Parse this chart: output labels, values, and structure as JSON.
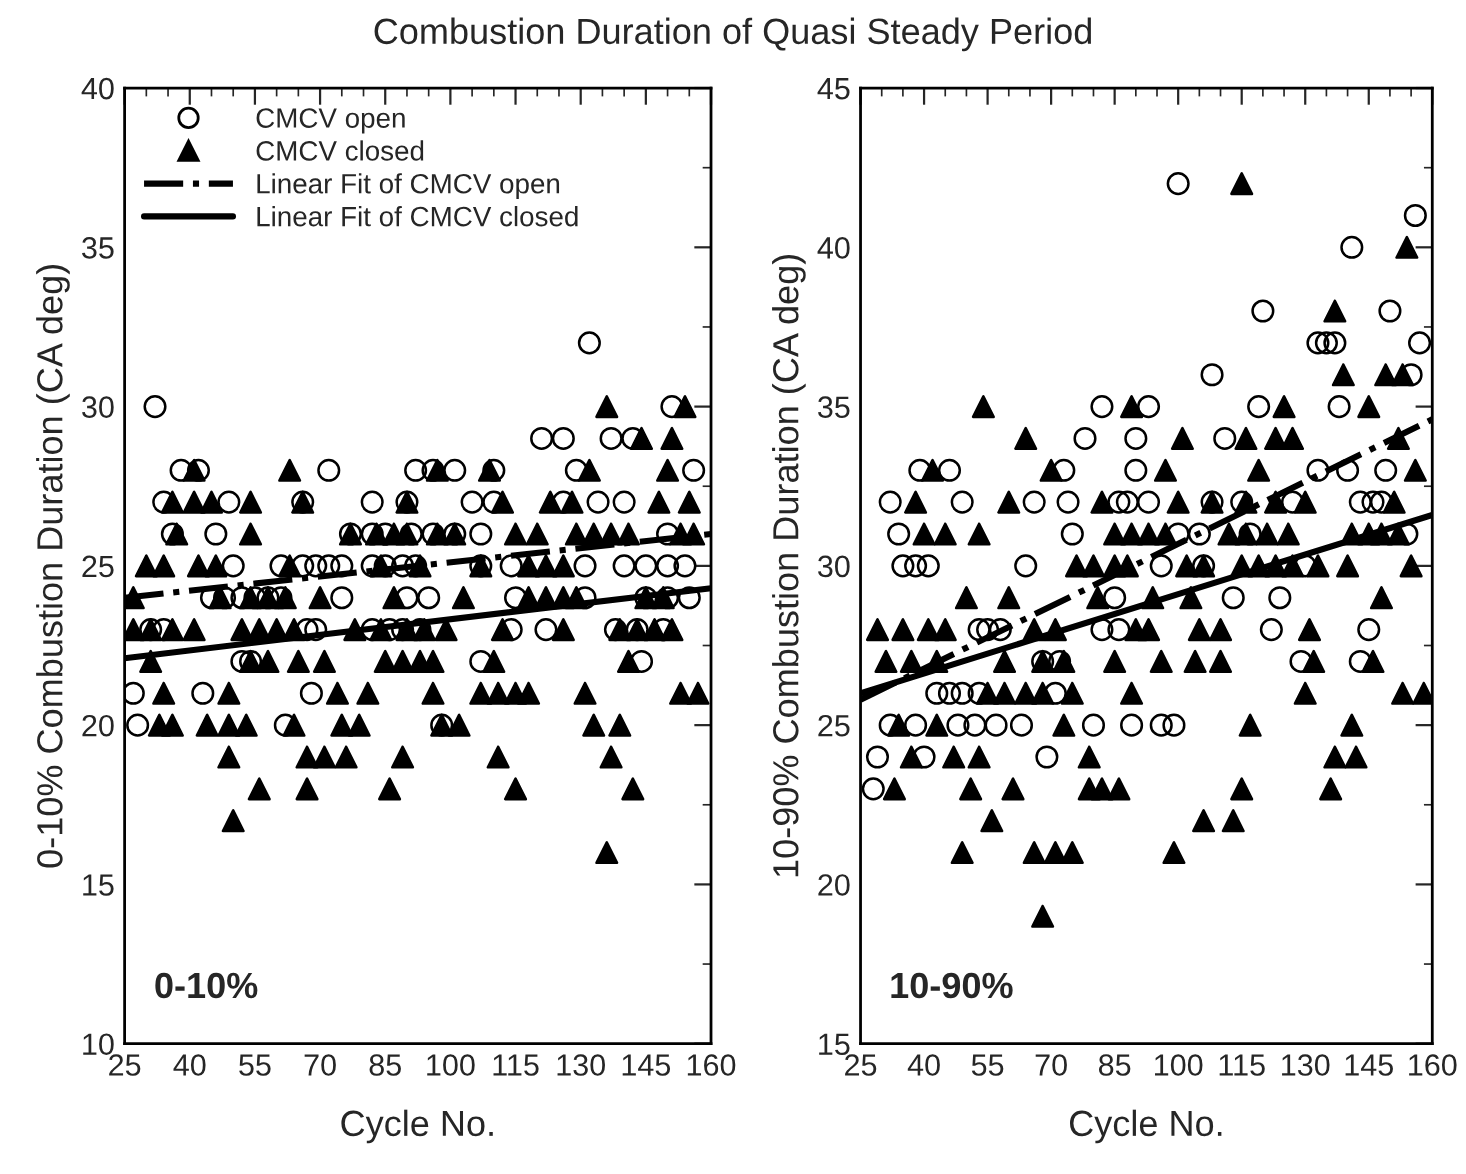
{
  "chart_data": [
    {
      "type": "scatter",
      "title": "Combustion Duration of Quasi Steady Period",
      "xlabel": "Cycle No.",
      "ylabel": "0-10% Combustion Duration (CA deg)",
      "xlim": [
        25,
        160
      ],
      "xticks": [
        25,
        40,
        55,
        70,
        85,
        100,
        115,
        130,
        145,
        160
      ],
      "ylim": [
        10,
        40
      ],
      "yticks": [
        10,
        15,
        20,
        25,
        30,
        35,
        40
      ],
      "grid": false,
      "legend": "top left",
      "annotations": [
        "0-10%"
      ],
      "series": [
        {
          "name": "CMCV open",
          "marker": "circle",
          "color": "#000000",
          "x": [
            132,
            32,
            151,
            121,
            126,
            137,
            142,
            38,
            42,
            72,
            92,
            96,
            101,
            110,
            129,
            156,
            34,
            49,
            66,
            82,
            90,
            105,
            110,
            126,
            134,
            140,
            36,
            46,
            77,
            82,
            85,
            91,
            96,
            101,
            107,
            150,
            50,
            61,
            66,
            69,
            72,
            75,
            82,
            85,
            89,
            92,
            107,
            114,
            131,
            140,
            145,
            150,
            154,
            45,
            48,
            52,
            55,
            58,
            61,
            75,
            90,
            95,
            115,
            131,
            145,
            150,
            155,
            31,
            34,
            67,
            69,
            82,
            86,
            89,
            93,
            114,
            122,
            138,
            143,
            149,
            52,
            54,
            107,
            144,
            27,
            43,
            68,
            28,
            62,
            98
          ],
          "values": [
            32,
            30,
            30,
            29,
            29,
            29,
            29,
            28,
            28,
            28,
            28,
            28,
            28,
            28,
            28,
            28,
            27,
            27,
            27,
            27,
            27,
            27,
            27,
            27,
            27,
            27,
            26,
            26,
            26,
            26,
            26,
            26,
            26,
            26,
            26,
            26,
            25,
            25,
            25,
            25,
            25,
            25,
            25,
            25,
            25,
            25,
            25,
            25,
            25,
            25,
            25,
            25,
            25,
            24,
            24,
            24,
            24,
            24,
            24,
            24,
            24,
            24,
            24,
            24,
            24,
            24,
            24,
            23,
            23,
            23,
            23,
            23,
            23,
            23,
            23,
            23,
            23,
            23,
            23,
            23,
            22,
            22,
            22,
            22,
            21,
            21,
            21,
            20,
            20,
            20
          ]
        },
        {
          "name": "CMCV closed",
          "marker": "triangle",
          "color": "#000000",
          "x": [
            136,
            154,
            144,
            151,
            41,
            63,
            97,
            109,
            132,
            150,
            36,
            41,
            45,
            54,
            66,
            90,
            112,
            123,
            128,
            148,
            155,
            37,
            54,
            77,
            83,
            87,
            90,
            97,
            101,
            115,
            120,
            129,
            133,
            137,
            141,
            153,
            156,
            30,
            34,
            42,
            46,
            63,
            84,
            93,
            107,
            118,
            122,
            126,
            27,
            47,
            54,
            58,
            62,
            70,
            87,
            103,
            118,
            122,
            126,
            129,
            145,
            149,
            27,
            31,
            36,
            41,
            52,
            56,
            60,
            64,
            78,
            84,
            90,
            94,
            99,
            112,
            126,
            139,
            143,
            147,
            151,
            31,
            54,
            58,
            65,
            71,
            85,
            89,
            93,
            96,
            110,
            141,
            34,
            49,
            74,
            81,
            96,
            107,
            111,
            115,
            118,
            131,
            153,
            157,
            33,
            36,
            44,
            49,
            53,
            64,
            75,
            79,
            98,
            102,
            133,
            139,
            49,
            67,
            71,
            76,
            89,
            111,
            137,
            56,
            67,
            86,
            115,
            142,
            50,
            136
          ],
          "values": [
            30,
            30,
            29,
            29,
            28,
            28,
            28,
            28,
            28,
            28,
            27,
            27,
            27,
            27,
            27,
            27,
            27,
            27,
            27,
            27,
            27,
            26,
            26,
            26,
            26,
            26,
            26,
            26,
            26,
            26,
            26,
            26,
            26,
            26,
            26,
            26,
            26,
            25,
            25,
            25,
            25,
            25,
            25,
            25,
            25,
            25,
            25,
            25,
            24,
            24,
            24,
            24,
            24,
            24,
            24,
            24,
            24,
            24,
            24,
            24,
            24,
            24,
            23,
            23,
            23,
            23,
            23,
            23,
            23,
            23,
            23,
            23,
            23,
            23,
            23,
            23,
            23,
            23,
            23,
            23,
            23,
            22,
            22,
            22,
            22,
            22,
            22,
            22,
            22,
            22,
            22,
            22,
            21,
            21,
            21,
            21,
            21,
            21,
            21,
            21,
            21,
            21,
            21,
            21,
            20,
            20,
            20,
            20,
            20,
            20,
            20,
            20,
            20,
            20,
            20,
            20,
            19,
            19,
            19,
            19,
            19,
            19,
            19,
            18,
            18,
            18,
            18,
            18,
            17,
            16
          ]
        },
        {
          "name": "Linear Fit of CMCV open",
          "type": "line",
          "line_style": "dashed",
          "marker": "none",
          "color": "#000000",
          "x": [
            25,
            160
          ],
          "values": [
            24.0,
            26.0
          ]
        },
        {
          "name": "Linear Fit of CMCV closed",
          "type": "line",
          "line_style": "solid",
          "marker": "none",
          "color": "#000000",
          "x": [
            25,
            160
          ],
          "values": [
            22.1,
            24.3
          ]
        }
      ]
    },
    {
      "type": "scatter",
      "xlabel": "Cycle No.",
      "ylabel": "10-90% Combustion Duration (CA deg)",
      "xlim": [
        25,
        160
      ],
      "xticks": [
        25,
        40,
        55,
        70,
        85,
        100,
        115,
        130,
        145,
        160
      ],
      "ylim": [
        15,
        45
      ],
      "yticks": [
        15,
        20,
        25,
        30,
        35,
        40,
        45
      ],
      "grid": false,
      "annotations": [
        "10-90%"
      ],
      "series": [
        {
          "marker": "circle",
          "color": "#000000",
          "x": [
            100,
            156,
            141,
            120,
            150,
            133,
            135,
            137,
            157,
            108,
            155,
            82,
            93,
            119,
            138,
            78,
            90,
            111,
            39,
            46,
            73,
            90,
            133,
            140,
            149,
            32,
            49,
            66,
            74,
            86,
            88,
            93,
            108,
            115,
            127,
            143,
            146,
            148,
            34,
            75,
            100,
            105,
            117,
            154,
            35,
            38,
            41,
            64,
            96,
            106,
            130,
            85,
            113,
            124,
            53,
            55,
            58,
            82,
            86,
            122,
            145,
            68,
            72,
            129,
            143,
            43,
            46,
            49,
            53,
            71,
            32,
            38,
            48,
            52,
            57,
            63,
            80,
            89,
            96,
            99,
            29,
            40,
            69,
            28
          ],
          "values": [
            42,
            41,
            40,
            38,
            38,
            37,
            37,
            37,
            37,
            36,
            36,
            35,
            35,
            35,
            35,
            34,
            34,
            34,
            33,
            33,
            33,
            33,
            33,
            33,
            33,
            32,
            32,
            32,
            32,
            32,
            32,
            32,
            32,
            32,
            32,
            32,
            32,
            32,
            31,
            31,
            31,
            31,
            31,
            31,
            30,
            30,
            30,
            30,
            30,
            30,
            30,
            29,
            29,
            29,
            28,
            28,
            28,
            28,
            28,
            28,
            28,
            27,
            27,
            27,
            27,
            26,
            26,
            26,
            26,
            26,
            25,
            25,
            25,
            25,
            25,
            25,
            25,
            25,
            25,
            25,
            24,
            24,
            24,
            23
          ]
        },
        {
          "marker": "triangle",
          "color": "#000000",
          "x": [
            115,
            154,
            137,
            139,
            149,
            153,
            54,
            89,
            125,
            145,
            64,
            101,
            116,
            123,
            127,
            152,
            42,
            70,
            97,
            119,
            156,
            38,
            60,
            82,
            100,
            108,
            116,
            123,
            130,
            151,
            40,
            45,
            53,
            85,
            89,
            93,
            97,
            112,
            116,
            121,
            126,
            141,
            145,
            148,
            152,
            76,
            80,
            85,
            88,
            102,
            106,
            115,
            119,
            123,
            127,
            133,
            140,
            155,
            50,
            60,
            81,
            94,
            103,
            148,
            29,
            35,
            41,
            45,
            66,
            71,
            90,
            93,
            105,
            110,
            131,
            31,
            37,
            43,
            59,
            68,
            73,
            85,
            96,
            104,
            110,
            132,
            146,
            55,
            59,
            64,
            68,
            75,
            89,
            130,
            153,
            158,
            34,
            43,
            73,
            117,
            141,
            37,
            47,
            53,
            79,
            137,
            142,
            33,
            51,
            61,
            79,
            82,
            86,
            115,
            136,
            56,
            106,
            113,
            49,
            66,
            71,
            75,
            99,
            68
          ],
          "values": [
            42,
            40,
            38,
            36,
            36,
            36,
            35,
            35,
            35,
            35,
            34,
            34,
            34,
            34,
            34,
            34,
            33,
            33,
            33,
            33,
            33,
            32,
            32,
            32,
            32,
            32,
            32,
            32,
            32,
            32,
            31,
            31,
            31,
            31,
            31,
            31,
            31,
            31,
            31,
            31,
            31,
            31,
            31,
            31,
            31,
            30,
            30,
            30,
            30,
            30,
            30,
            30,
            30,
            30,
            30,
            30,
            30,
            30,
            29,
            29,
            29,
            29,
            29,
            29,
            28,
            28,
            28,
            28,
            28,
            28,
            28,
            28,
            28,
            28,
            28,
            27,
            27,
            27,
            27,
            27,
            27,
            27,
            27,
            27,
            27,
            27,
            27,
            26,
            26,
            26,
            26,
            26,
            26,
            26,
            26,
            26,
            25,
            25,
            25,
            25,
            25,
            24,
            24,
            24,
            24,
            24,
            24,
            23,
            23,
            23,
            23,
            23,
            23,
            23,
            23,
            22,
            22,
            22,
            21,
            21,
            21,
            21,
            21,
            19
          ]
        },
        {
          "type": "line",
          "line_style": "dashed",
          "marker": "none",
          "color": "#000000",
          "x": [
            25,
            160
          ],
          "values": [
            25.8,
            34.6
          ]
        },
        {
          "type": "line",
          "line_style": "solid",
          "marker": "none",
          "color": "#000000",
          "x": [
            25,
            160
          ],
          "values": [
            26.0,
            31.6
          ]
        }
      ]
    }
  ]
}
